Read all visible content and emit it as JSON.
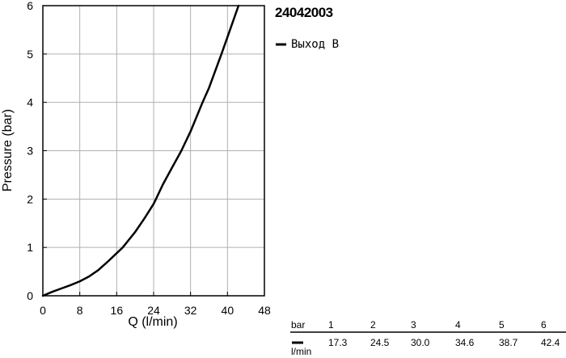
{
  "chart_data": {
    "type": "line",
    "title": "24042003",
    "xlabel": "Q (l/min)",
    "ylabel": "Pressure (bar)",
    "xlim": [
      0,
      48
    ],
    "ylim": [
      0,
      6
    ],
    "x_ticks": [
      "0",
      "8",
      "16",
      "24",
      "32",
      "40",
      "48"
    ],
    "y_ticks": [
      "0",
      "1",
      "2",
      "3",
      "4",
      "5",
      "6"
    ],
    "grid": true,
    "legend_position": "right",
    "series": [
      {
        "name": "Выход B",
        "color": "#000000",
        "points": [
          [
            0,
            0
          ],
          [
            2,
            0.08
          ],
          [
            4,
            0.15
          ],
          [
            6,
            0.22
          ],
          [
            8,
            0.3
          ],
          [
            10,
            0.4
          ],
          [
            12,
            0.53
          ],
          [
            14,
            0.7
          ],
          [
            16,
            0.88
          ],
          [
            17.3,
            1.0
          ],
          [
            20,
            1.32
          ],
          [
            22,
            1.6
          ],
          [
            24,
            1.9
          ],
          [
            24.5,
            2.0
          ],
          [
            26,
            2.3
          ],
          [
            28,
            2.65
          ],
          [
            30.0,
            3.0
          ],
          [
            32,
            3.4
          ],
          [
            34.6,
            4.0
          ],
          [
            36,
            4.3
          ],
          [
            38.7,
            5.0
          ],
          [
            40,
            5.35
          ],
          [
            42.4,
            6.0
          ]
        ]
      }
    ],
    "table": {
      "row1_label": "bar",
      "row2_label": "l/min",
      "bar": [
        "1",
        "2",
        "3",
        "4",
        "5",
        "6"
      ],
      "lmin": [
        "17.3",
        "24.5",
        "30.0",
        "34.6",
        "38.7",
        "42.4"
      ]
    }
  }
}
